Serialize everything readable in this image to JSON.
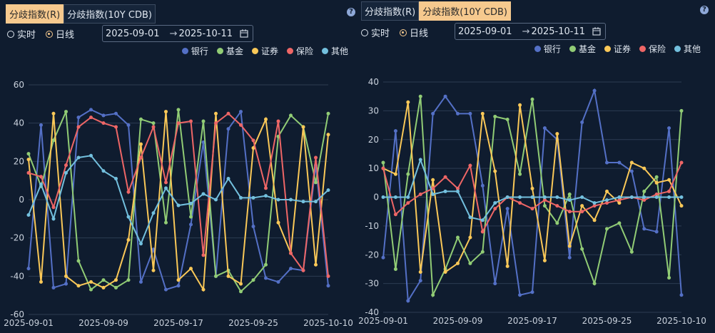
{
  "panels": [
    {
      "tabs": [
        "分歧指数(R)",
        "分歧指数(10Y CDB)"
      ],
      "active_tab": 0,
      "modes": [
        "实时",
        "日线"
      ],
      "selected_mode": 1,
      "date_start": "2025-09-01",
      "date_separator": "→",
      "date_end": "2025-10-11",
      "help": "?"
    },
    {
      "tabs": [
        "分歧指数(R)",
        "分歧指数(10Y CDB)"
      ],
      "active_tab": 1,
      "modes": [
        "实时",
        "日线"
      ],
      "selected_mode": 1,
      "date_start": "2025-09-01",
      "date_separator": "→",
      "date_end": "2025-10-11",
      "help": "?"
    }
  ],
  "chart_data": [
    {
      "type": "line",
      "categories": [
        "2025-09-01",
        null,
        null,
        null,
        null,
        null,
        "2025-09-09",
        null,
        null,
        null,
        null,
        null,
        "2025-09-17",
        null,
        null,
        null,
        null,
        null,
        "2025-09-25",
        null,
        null,
        null,
        null,
        null,
        "2025-10-10"
      ],
      "ylim": [
        -60,
        60
      ],
      "yticks": [
        -60,
        -40,
        -20,
        0,
        20,
        40,
        60
      ],
      "grid": true,
      "series": [
        {
          "name": "银行",
          "color": "#5470c6",
          "values": [
            -36,
            39,
            -46,
            -44,
            43,
            47,
            44,
            45,
            39,
            -43,
            -26,
            -47,
            -45,
            -13,
            30,
            -40,
            37,
            46,
            -14,
            -41,
            -43,
            -36,
            -37,
            18,
            -45
          ]
        },
        {
          "name": "基金",
          "color": "#91cc75",
          "values": [
            24,
            7,
            31,
            46,
            -32,
            -47,
            -42,
            -46,
            -42,
            42,
            40,
            -12,
            47,
            -9,
            41,
            -40,
            -37,
            -48,
            -42,
            -34,
            33,
            44,
            38,
            9,
            45
          ]
        },
        {
          "name": "证券",
          "color": "#fac858",
          "values": [
            21,
            -43,
            45,
            -40,
            -45,
            -43,
            -46,
            -42,
            -21,
            29,
            -37,
            46,
            -42,
            -36,
            -47,
            45,
            -40,
            -44,
            27,
            42,
            -12,
            -28,
            38,
            -34,
            34
          ]
        },
        {
          "name": "保险",
          "color": "#ee6666",
          "values": [
            14,
            12,
            -4,
            18,
            38,
            43,
            40,
            38,
            4,
            22,
            38,
            9,
            40,
            41,
            -29,
            40,
            45,
            39,
            31,
            6,
            41,
            -28,
            -37,
            22,
            -40
          ]
        },
        {
          "name": "其他",
          "color": "#73c0de",
          "values": [
            -8,
            8,
            -10,
            14,
            22,
            23,
            15,
            11,
            -9,
            -23,
            -7,
            6,
            -3,
            -2,
            3,
            0,
            11,
            1,
            1,
            2,
            0,
            0,
            -1,
            -1,
            5
          ]
        }
      ]
    },
    {
      "type": "line",
      "categories": [
        "2025-09-01",
        null,
        null,
        null,
        null,
        null,
        "2025-09-09",
        null,
        null,
        null,
        null,
        null,
        "2025-09-17",
        null,
        null,
        null,
        null,
        null,
        "2025-09-25",
        null,
        null,
        null,
        null,
        null,
        "2025-10-10"
      ],
      "ylim": [
        -40,
        40
      ],
      "yticks": [
        -40,
        -30,
        -20,
        -10,
        0,
        10,
        20,
        30,
        40
      ],
      "grid": true,
      "series": [
        {
          "name": "银行",
          "color": "#5470c6",
          "values": [
            -21,
            23,
            -36,
            -29,
            29,
            35,
            29,
            29,
            4,
            -30,
            -4,
            -34,
            -33,
            24,
            20,
            -21,
            26,
            37,
            12,
            12,
            9,
            -11,
            -12,
            24,
            -34
          ]
        },
        {
          "name": "基金",
          "color": "#91cc75",
          "values": [
            12,
            -25,
            8,
            35,
            -34,
            -25,
            -14,
            -23,
            -19,
            28,
            27,
            8,
            34,
            -3,
            -9,
            1,
            -18,
            -30,
            -11,
            -9,
            -19,
            2,
            7,
            -28,
            30
          ]
        },
        {
          "name": "证券",
          "color": "#fac858",
          "values": [
            10,
            8,
            33,
            -26,
            6,
            -26,
            -23,
            -14,
            29,
            9,
            -24,
            32,
            3,
            -22,
            22,
            -17,
            -3,
            -8,
            2,
            -2,
            12,
            10,
            5,
            6,
            -3
          ]
        },
        {
          "name": "保险",
          "color": "#ee6666",
          "values": [
            10,
            -6,
            -2,
            1,
            3,
            7,
            3,
            11,
            -12,
            -4,
            0,
            -2,
            -4,
            -1,
            -3,
            -5,
            -5,
            -3,
            -2,
            -1,
            0,
            -1,
            1,
            2,
            12
          ]
        },
        {
          "name": "其他",
          "color": "#73c0de",
          "values": [
            0,
            0,
            0,
            13,
            1,
            2,
            2,
            -7,
            -8,
            -2,
            0,
            0,
            0,
            0,
            0,
            -1,
            0,
            -2,
            -1,
            0,
            0,
            0,
            0,
            0,
            0
          ]
        }
      ]
    }
  ]
}
